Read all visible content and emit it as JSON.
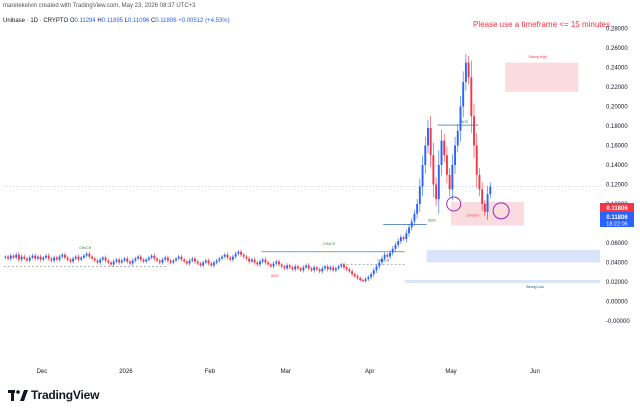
{
  "header": {
    "credit": "maretekelvin created with TradingView.com, May 23, 2026 08:37 UTC+3",
    "symbol": "Unibase · 1D · CRYPTO",
    "open_key": "O",
    "open": "0.11294",
    "high_key": "H",
    "high": "0.11895",
    "low_key": "L",
    "low": "0.11096",
    "close_key": "C",
    "close": "0.11806",
    "change": "+0.00512 (+4.53%)"
  },
  "warning": "Please use a timeframe <= 15 minutes",
  "price_tags": {
    "last": "0.11806",
    "last2": "0.11806",
    "countdown": "18:22:06"
  },
  "brand": "TradingView",
  "colors": {
    "up": "#2962ff",
    "down": "#f23645",
    "supply": "#f9d7dc",
    "demand": "#d4e2fb",
    "bos": "#2e7d32"
  },
  "chart_data": {
    "type": "candlestick",
    "yscale": "linear",
    "ylim": [
      -0.01,
      0.28
    ],
    "yticks": [
      "0.28000",
      "0.26000",
      "0.24000",
      "0.22000",
      "0.20000",
      "0.18000",
      "0.16000",
      "0.14000",
      "0.12000",
      "0.10000",
      "0.08000",
      "0.06000",
      "0.04000",
      "0.02000",
      "0.00000",
      "-0.00000"
    ],
    "xticks": [
      {
        "label": "Dec",
        "day": 14
      },
      {
        "label": "2026",
        "day": 45
      },
      {
        "label": "Feb",
        "day": 76
      },
      {
        "label": "Mar",
        "day": 104
      },
      {
        "label": "Apr",
        "day": 135
      },
      {
        "label": "May",
        "day": 165
      },
      {
        "label": "Jun",
        "day": 196
      }
    ],
    "xlim": [
      0,
      220
    ],
    "closes": [
      0.046,
      0.044,
      0.047,
      0.045,
      0.048,
      0.043,
      0.046,
      0.044,
      0.042,
      0.045,
      0.047,
      0.044,
      0.046,
      0.043,
      0.045,
      0.047,
      0.044,
      0.042,
      0.045,
      0.043,
      0.046,
      0.048,
      0.045,
      0.043,
      0.041,
      0.044,
      0.046,
      0.043,
      0.045,
      0.047,
      0.049,
      0.046,
      0.044,
      0.042,
      0.04,
      0.043,
      0.045,
      0.042,
      0.04,
      0.038,
      0.041,
      0.043,
      0.04,
      0.042,
      0.044,
      0.041,
      0.039,
      0.042,
      0.044,
      0.046,
      0.043,
      0.041,
      0.043,
      0.045,
      0.047,
      0.044,
      0.042,
      0.04,
      0.043,
      0.045,
      0.042,
      0.04,
      0.042,
      0.044,
      0.046,
      0.043,
      0.041,
      0.039,
      0.042,
      0.044,
      0.041,
      0.039,
      0.037,
      0.04,
      0.042,
      0.039,
      0.037,
      0.04,
      0.042,
      0.044,
      0.046,
      0.048,
      0.045,
      0.043,
      0.046,
      0.049,
      0.051,
      0.048,
      0.046,
      0.044,
      0.041,
      0.043,
      0.04,
      0.038,
      0.041,
      0.043,
      0.04,
      0.038,
      0.036,
      0.039,
      0.041,
      0.038,
      0.036,
      0.034,
      0.037,
      0.035,
      0.033,
      0.036,
      0.034,
      0.032,
      0.035,
      0.037,
      0.034,
      0.032,
      0.035,
      0.033,
      0.031,
      0.034,
      0.036,
      0.033,
      0.035,
      0.032,
      0.034,
      0.036,
      0.038,
      0.035,
      0.033,
      0.031,
      0.028,
      0.026,
      0.024,
      0.022,
      0.021,
      0.023,
      0.025,
      0.028,
      0.032,
      0.036,
      0.04,
      0.044,
      0.048,
      0.046,
      0.05,
      0.054,
      0.058,
      0.062,
      0.066,
      0.064,
      0.07,
      0.076,
      0.082,
      0.09,
      0.1,
      0.118,
      0.14,
      0.16,
      0.178,
      0.15,
      0.12,
      0.105,
      0.14,
      0.165,
      0.15,
      0.13,
      0.115,
      0.14,
      0.16,
      0.175,
      0.2,
      0.225,
      0.245,
      0.23,
      0.19,
      0.16,
      0.13,
      0.115,
      0.1,
      0.092,
      0.11,
      0.118
    ],
    "annotations": [
      "BOS",
      "BOS",
      "BOS",
      "CHoCH",
      "CHoCH",
      "CHoCH",
      "CHoCH",
      "Strong High",
      "Strong Low"
    ],
    "zones": [
      {
        "type": "supply",
        "from_day": 185,
        "to_day": 212,
        "low": 0.215,
        "high": 0.245
      },
      {
        "type": "supply",
        "from_day": 165,
        "to_day": 192,
        "low": 0.078,
        "high": 0.102
      },
      {
        "type": "demand",
        "from_day": 156,
        "to_day": 220,
        "low": 0.04,
        "high": 0.053
      },
      {
        "type": "demand",
        "from_day": 148,
        "to_day": 220,
        "low": 0.019,
        "high": 0.022
      }
    ]
  }
}
